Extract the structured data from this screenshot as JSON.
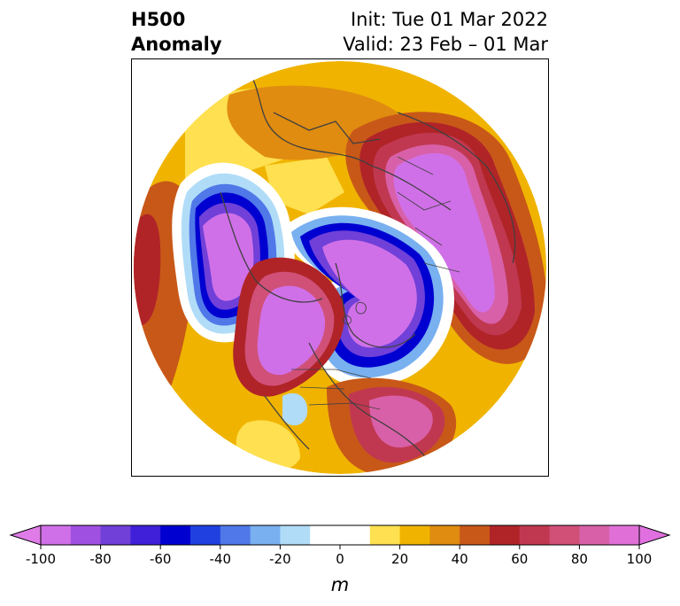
{
  "header": {
    "title_line1": "H500",
    "title_line2": "Anomaly",
    "init_text": "Init: Tue 01 Mar 2022",
    "valid_text": "Valid: 23 Feb – 01 Mar"
  },
  "colorbar": {
    "unit_label": "m",
    "ticks": [
      "-100",
      "-80",
      "-60",
      "-40",
      "-20",
      "0",
      "20",
      "40",
      "60",
      "80",
      "100"
    ],
    "bins": [
      {
        "from": -100,
        "to": -90,
        "color": "#d070e8"
      },
      {
        "from": -90,
        "to": -80,
        "color": "#a050e0"
      },
      {
        "from": -80,
        "to": -70,
        "color": "#7040d8"
      },
      {
        "from": -70,
        "to": -60,
        "color": "#4020d8"
      },
      {
        "from": -60,
        "to": -50,
        "color": "#0000d0"
      },
      {
        "from": -50,
        "to": -40,
        "color": "#2040e0"
      },
      {
        "from": -40,
        "to": -30,
        "color": "#5078e8"
      },
      {
        "from": -30,
        "to": -20,
        "color": "#78b0f0"
      },
      {
        "from": -20,
        "to": -10,
        "color": "#b0dcf8"
      },
      {
        "from": -10,
        "to": 10,
        "color": "#ffffff"
      },
      {
        "from": 10,
        "to": 20,
        "color": "#ffe050"
      },
      {
        "from": 20,
        "to": 30,
        "color": "#f0b400"
      },
      {
        "from": 30,
        "to": 40,
        "color": "#e08c10"
      },
      {
        "from": 40,
        "to": 50,
        "color": "#c85818"
      },
      {
        "from": 50,
        "to": 60,
        "color": "#b02428"
      },
      {
        "from": 60,
        "to": 70,
        "color": "#c03850"
      },
      {
        "from": 70,
        "to": 80,
        "color": "#d05078"
      },
      {
        "from": 80,
        "to": 90,
        "color": "#d860a8"
      },
      {
        "from": 90,
        "to": 100,
        "color": "#e070d8"
      }
    ],
    "under_color": "#e07ce8",
    "over_color": "#e070e0"
  },
  "map": {
    "projection": "north-polar-stereographic",
    "coastline_color": "#404040",
    "features": [
      {
        "name": "ridge-western-north-america",
        "anomaly": 100
      },
      {
        "name": "trough-north-pacific",
        "anomaly": -100
      },
      {
        "name": "trough-canadian-arctic",
        "anomaly": -100
      },
      {
        "name": "ridge-northern-eurasia",
        "anomaly": 100
      },
      {
        "name": "ridge-north-atlantic",
        "anomaly": 100
      }
    ]
  }
}
